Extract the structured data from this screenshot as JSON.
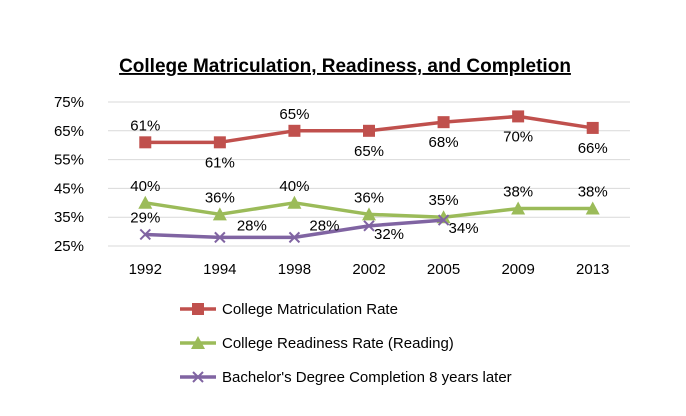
{
  "chart_data": {
    "type": "line",
    "title": "College Matriculation, Readiness, and Completion",
    "categories": [
      "1992",
      "1994",
      "1998",
      "2002",
      "2005",
      "2009",
      "2013"
    ],
    "y_ticks": [
      "75%",
      "65%",
      "55%",
      "45%",
      "35%",
      "25%"
    ],
    "ylim": [
      25,
      75
    ],
    "grid": true,
    "legend_position": "bottom",
    "series": [
      {
        "name": "College Matriculation Rate",
        "color": "#C0504D",
        "marker": "square",
        "values": [
          61,
          61,
          65,
          65,
          68,
          70,
          66
        ],
        "labels": [
          "61%",
          "61%",
          "65%",
          "65%",
          "68%",
          "70%",
          "66%"
        ]
      },
      {
        "name": "College Readiness Rate (Reading)",
        "color": "#9BBB59",
        "marker": "triangle",
        "values": [
          40,
          36,
          40,
          36,
          35,
          38,
          38
        ],
        "labels": [
          "40%",
          "36%",
          "40%",
          "36%",
          "35%",
          "38%",
          "38%"
        ]
      },
      {
        "name": "Bachelor's Degree Completion 8 years later",
        "color": "#8064A2",
        "marker": "x",
        "values": [
          29,
          28,
          28,
          32,
          34,
          null,
          null
        ],
        "labels": [
          "29%",
          "28%",
          "28%",
          "32%",
          "34%",
          null,
          null
        ]
      }
    ]
  }
}
